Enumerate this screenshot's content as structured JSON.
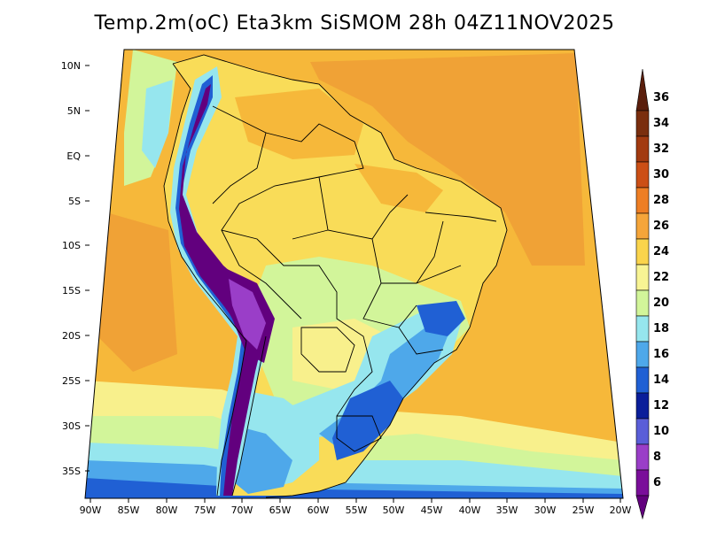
{
  "title": "Temp.2m(oC) Eta3km SiSMOM 28h 04Z11NOV2025",
  "lat_ticks": [
    "10N",
    "5N",
    "EQ",
    "5S",
    "10S",
    "15S",
    "20S",
    "25S",
    "30S",
    "35S"
  ],
  "lon_ticks": [
    "90W",
    "85W",
    "80W",
    "75W",
    "70W",
    "65W",
    "60W",
    "55W",
    "50W",
    "45W",
    "40W",
    "35W",
    "30W",
    "25W",
    "20W"
  ],
  "colorbar": {
    "labels": [
      "36",
      "34",
      "32",
      "30",
      "28",
      "26",
      "24",
      "22",
      "20",
      "18",
      "16",
      "14",
      "12",
      "10",
      "8",
      "6"
    ],
    "colors": [
      "#5a1e0c",
      "#7a2e0e",
      "#a23a10",
      "#cc4f16",
      "#ee7e24",
      "#f5a53a",
      "#fad44c",
      "#f8f494",
      "#d2f59a",
      "#96e6ee",
      "#4ea8ea",
      "#2060d4",
      "#0a1e9a",
      "#5a5ed8",
      "#9a3ec8",
      "#7a0e9a",
      "#62007e"
    ]
  },
  "field_colors": {
    "ocean_warm": "#f6b83a",
    "ocean_orange": "#f0a236",
    "land_yellow": "#f9dc58",
    "pale_yellow": "#f8f08c",
    "pale_green": "#d2f59a",
    "cyan": "#96e6ee",
    "blue": "#4ea8ea",
    "dark_blue": "#2060d4",
    "navy": "#0a1e9a",
    "purple": "#62007e"
  }
}
